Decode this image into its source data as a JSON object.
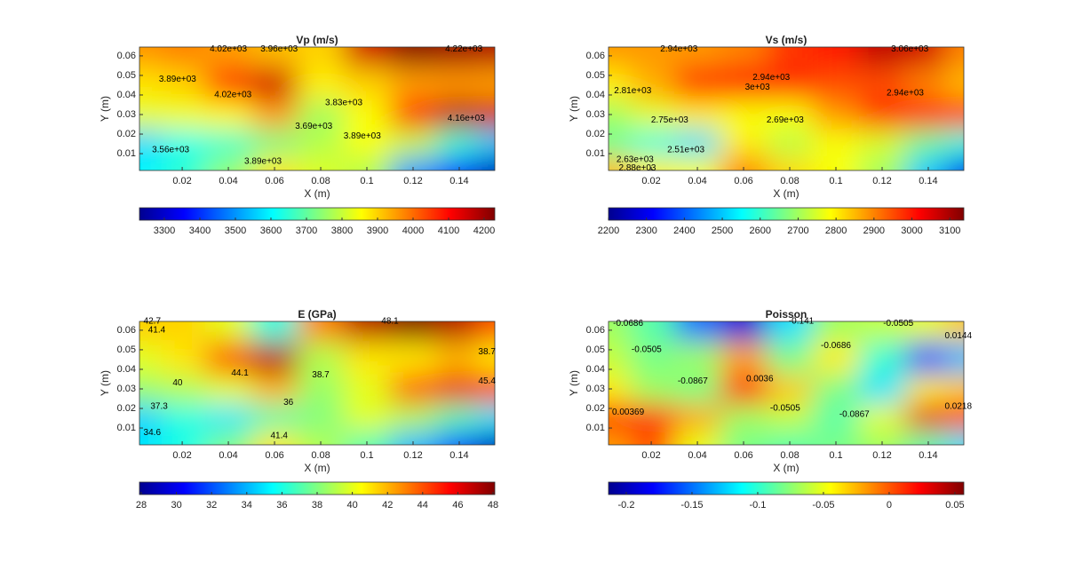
{
  "chart_data": [
    {
      "type": "contour",
      "title": "Vp  (m/s)",
      "x_label": "X (m)",
      "y_label": "Y (m)",
      "x": [
        0.002,
        0.02,
        0.04,
        0.06,
        0.08,
        0.1,
        0.12,
        0.14,
        0.155
      ],
      "y": [
        0.002,
        0.015,
        0.03,
        0.045,
        0.064
      ],
      "z": [
        [
          3600,
          3650,
          3750,
          3880,
          3820,
          3780,
          3500,
          3400,
          3280
        ],
        [
          3560,
          3620,
          3650,
          3720,
          3780,
          3850,
          3800,
          3650,
          3550
        ],
        [
          3830,
          3840,
          3860,
          3950,
          3760,
          3850,
          4100,
          4180,
          4150
        ],
        [
          3880,
          3900,
          4050,
          4150,
          3870,
          3900,
          3950,
          3960,
          3950
        ],
        [
          3960,
          3980,
          3950,
          3920,
          3900,
          4150,
          4220,
          4200,
          4180
        ]
      ],
      "xlim": [
        0.0015,
        0.1554
      ],
      "ylim": [
        0.0014,
        0.0645
      ],
      "xticks": [
        0.02,
        0.04,
        0.06,
        0.08,
        0.1,
        0.12,
        0.14
      ],
      "yticks": [
        0.01,
        0.02,
        0.03,
        0.04,
        0.05,
        0.06
      ],
      "clim": [
        3230,
        4230
      ],
      "cticks": [
        3300,
        3400,
        3500,
        3600,
        3700,
        3800,
        3900,
        4000,
        4100,
        4200
      ],
      "contour_labels": [
        {
          "x": 0.04,
          "y": 0.0635,
          "value": 4020,
          "label": "4.02e+03"
        },
        {
          "x": 0.062,
          "y": 0.0635,
          "value": 3960,
          "label": "3.96e+03"
        },
        {
          "x": 0.018,
          "y": 0.048,
          "value": 3890,
          "label": "3.89e+03"
        },
        {
          "x": 0.042,
          "y": 0.04,
          "value": 4020,
          "label": "4.02e+03"
        },
        {
          "x": 0.09,
          "y": 0.036,
          "value": 3830,
          "label": "3.83e+03"
        },
        {
          "x": 0.077,
          "y": 0.024,
          "value": 3690,
          "label": "3.69e+03"
        },
        {
          "x": 0.098,
          "y": 0.019,
          "value": 3890,
          "label": "3.89e+03"
        },
        {
          "x": 0.015,
          "y": 0.012,
          "value": 3560,
          "label": "3.56e+03"
        },
        {
          "x": 0.143,
          "y": 0.028,
          "value": 4160,
          "label": "4.16e+03"
        },
        {
          "x": 0.142,
          "y": 0.0635,
          "value": 4220,
          "label": "4.22e+03"
        },
        {
          "x": 0.055,
          "y": 0.006,
          "value": 3890,
          "label": "3.89e+03"
        }
      ]
    },
    {
      "type": "contour",
      "title": "Vs (m/s)",
      "x_label": "X (m)",
      "y_label": "Y (m)",
      "x": [
        0.002,
        0.02,
        0.04,
        0.06,
        0.08,
        0.1,
        0.12,
        0.14,
        0.155
      ],
      "y": [
        0.002,
        0.015,
        0.03,
        0.045,
        0.064
      ],
      "z": [
        [
          2850,
          2800,
          2780,
          2900,
          2820,
          2780,
          2700,
          2500,
          2300
        ],
        [
          2650,
          2580,
          2520,
          2800,
          2720,
          2780,
          2750,
          2650,
          2580
        ],
        [
          2700,
          2760,
          2800,
          2780,
          2780,
          2880,
          2980,
          3000,
          2980
        ],
        [
          2800,
          2860,
          2980,
          3000,
          2980,
          2950,
          2950,
          2900,
          2850
        ],
        [
          2880,
          2880,
          2880,
          2900,
          2970,
          3000,
          3080,
          3060,
          2900
        ]
      ],
      "xlim": [
        0.0015,
        0.1554
      ],
      "ylim": [
        0.0014,
        0.0645
      ],
      "xticks": [
        0.02,
        0.04,
        0.06,
        0.08,
        0.1,
        0.12,
        0.14
      ],
      "yticks": [
        0.01,
        0.02,
        0.03,
        0.04,
        0.05,
        0.06
      ],
      "clim": [
        2200,
        3137
      ],
      "cticks": [
        2200,
        2300,
        2400,
        2500,
        2600,
        2700,
        2800,
        2900,
        3000,
        3100
      ],
      "contour_labels": [
        {
          "x": 0.032,
          "y": 0.0635,
          "value": 2940,
          "label": "2.94e+03"
        },
        {
          "x": 0.072,
          "y": 0.049,
          "value": 2940,
          "label": "2.94e+03"
        },
        {
          "x": 0.012,
          "y": 0.042,
          "value": 2810,
          "label": "2.81e+03"
        },
        {
          "x": 0.066,
          "y": 0.044,
          "value": 3000,
          "label": "3e+03"
        },
        {
          "x": 0.078,
          "y": 0.027,
          "value": 2690,
          "label": "2.69e+03"
        },
        {
          "x": 0.028,
          "y": 0.027,
          "value": 2750,
          "label": "2.75e+03"
        },
        {
          "x": 0.035,
          "y": 0.012,
          "value": 2510,
          "label": "2.51e+03"
        },
        {
          "x": 0.013,
          "y": 0.007,
          "value": 2630,
          "label": "2.63e+03"
        },
        {
          "x": 0.014,
          "y": 0.0025,
          "value": 2880,
          "label": "2.88e+03"
        },
        {
          "x": 0.132,
          "y": 0.0635,
          "value": 3060,
          "label": "3.06e+03"
        },
        {
          "x": 0.13,
          "y": 0.041,
          "value": 2940,
          "label": "2.94e+03"
        }
      ]
    },
    {
      "type": "contour",
      "title": "E (GPa)",
      "x_label": "X (m)",
      "y_label": "Y (m)",
      "x": [
        0.002,
        0.02,
        0.04,
        0.06,
        0.08,
        0.1,
        0.12,
        0.14,
        0.155
      ],
      "y": [
        0.002,
        0.015,
        0.03,
        0.045,
        0.064
      ],
      "z": [
        [
          35,
          36,
          38,
          41,
          39,
          37,
          34,
          32,
          29
        ],
        [
          34.5,
          36,
          35,
          37,
          38,
          40,
          39,
          37,
          35
        ],
        [
          38.5,
          39,
          40,
          42,
          38.5,
          40,
          44,
          46,
          45
        ],
        [
          40,
          41,
          44,
          47,
          39,
          41,
          41,
          42,
          41
        ],
        [
          41.5,
          41.4,
          40,
          36,
          43,
          47,
          48,
          47,
          44
        ]
      ],
      "xlim": [
        0.0015,
        0.1554
      ],
      "ylim": [
        0.0014,
        0.0645
      ],
      "xticks": [
        0.02,
        0.04,
        0.06,
        0.08,
        0.1,
        0.12,
        0.14
      ],
      "yticks": [
        0.01,
        0.02,
        0.03,
        0.04,
        0.05,
        0.06
      ],
      "clim": [
        27.9,
        48.1
      ],
      "cticks": [
        28,
        30,
        32,
        34,
        36,
        38,
        40,
        42,
        44,
        46,
        48
      ],
      "contour_labels": [
        {
          "x": 0.007,
          "y": 0.0645,
          "value": 42.7,
          "label": "42.7"
        },
        {
          "x": 0.11,
          "y": 0.0645,
          "value": 48.1,
          "label": "48.1"
        },
        {
          "x": 0.009,
          "y": 0.06,
          "value": 41.4,
          "label": "41.4"
        },
        {
          "x": 0.045,
          "y": 0.038,
          "value": 44.1,
          "label": "44.1"
        },
        {
          "x": 0.08,
          "y": 0.037,
          "value": 38.7,
          "label": "38.7"
        },
        {
          "x": 0.018,
          "y": 0.033,
          "value": 40,
          "label": "40"
        },
        {
          "x": 0.152,
          "y": 0.034,
          "value": 45.4,
          "label": "45.4"
        },
        {
          "x": 0.01,
          "y": 0.021,
          "value": 37.3,
          "label": "37.3"
        },
        {
          "x": 0.066,
          "y": 0.023,
          "value": 36,
          "label": "36"
        },
        {
          "x": 0.007,
          "y": 0.0075,
          "value": 34.6,
          "label": "34.6"
        },
        {
          "x": 0.062,
          "y": 0.006,
          "value": 41.4,
          "label": "41.4"
        },
        {
          "x": 0.152,
          "y": 0.049,
          "value": 38.7,
          "label": "38.7"
        }
      ]
    },
    {
      "type": "contour",
      "title": "Poisson",
      "x_label": "X (m)",
      "y_label": "Y (m)",
      "x": [
        0.002,
        0.02,
        0.04,
        0.06,
        0.08,
        0.1,
        0.12,
        0.14,
        0.155
      ],
      "y": [
        0.002,
        0.015,
        0.03,
        0.045,
        0.064
      ],
      "z": [
        [
          -0.02,
          0.0,
          -0.05,
          -0.08,
          -0.09,
          -0.08,
          -0.07,
          -0.09,
          -0.12
        ],
        [
          0.02,
          0.015,
          -0.02,
          -0.07,
          -0.06,
          -0.09,
          -0.05,
          0.03,
          0.01
        ],
        [
          -0.04,
          -0.07,
          -0.08,
          0.02,
          -0.03,
          -0.08,
          -0.12,
          -0.04,
          -0.03
        ],
        [
          -0.06,
          -0.08,
          -0.07,
          -0.02,
          -0.08,
          -0.04,
          -0.1,
          -0.16,
          -0.13
        ],
        [
          -0.07,
          -0.09,
          -0.15,
          -0.19,
          -0.12,
          -0.07,
          -0.06,
          -0.05,
          -0.03
        ]
      ],
      "xlim": [
        0.0015,
        0.1554
      ],
      "ylim": [
        0.0014,
        0.0645
      ],
      "xticks": [
        0.02,
        0.04,
        0.06,
        0.08,
        0.1,
        0.12,
        0.14
      ],
      "yticks": [
        0.01,
        0.02,
        0.03,
        0.04,
        0.05,
        0.06
      ],
      "clim": [
        -0.2135,
        0.0568
      ],
      "cticks": [
        -0.2,
        -0.15,
        -0.1,
        -0.05,
        0,
        0.05
      ],
      "contour_labels": [
        {
          "x": 0.01,
          "y": 0.0635,
          "value": -0.0686,
          "label": "-0.0686"
        },
        {
          "x": 0.085,
          "y": 0.0645,
          "value": -0.141,
          "label": "-0.141"
        },
        {
          "x": 0.127,
          "y": 0.0635,
          "value": -0.0505,
          "label": "-0.0505"
        },
        {
          "x": 0.018,
          "y": 0.05,
          "value": -0.0505,
          "label": "-0.0505"
        },
        {
          "x": 0.1,
          "y": 0.052,
          "value": -0.0686,
          "label": "-0.0686"
        },
        {
          "x": 0.038,
          "y": 0.034,
          "value": -0.0867,
          "label": "-0.0867"
        },
        {
          "x": 0.067,
          "y": 0.035,
          "value": 0.0036,
          "label": "0.0036"
        },
        {
          "x": 0.078,
          "y": 0.02,
          "value": -0.0505,
          "label": "-0.0505"
        },
        {
          "x": 0.108,
          "y": 0.017,
          "value": -0.0867,
          "label": "-0.0867"
        },
        {
          "x": 0.01,
          "y": 0.018,
          "value": 0.00369,
          "label": "0.00369"
        },
        {
          "x": 0.153,
          "y": 0.021,
          "value": 0.0218,
          "label": "0.0218"
        },
        {
          "x": 0.153,
          "y": 0.057,
          "value": 0.0144,
          "label": "0.0144"
        }
      ]
    }
  ]
}
